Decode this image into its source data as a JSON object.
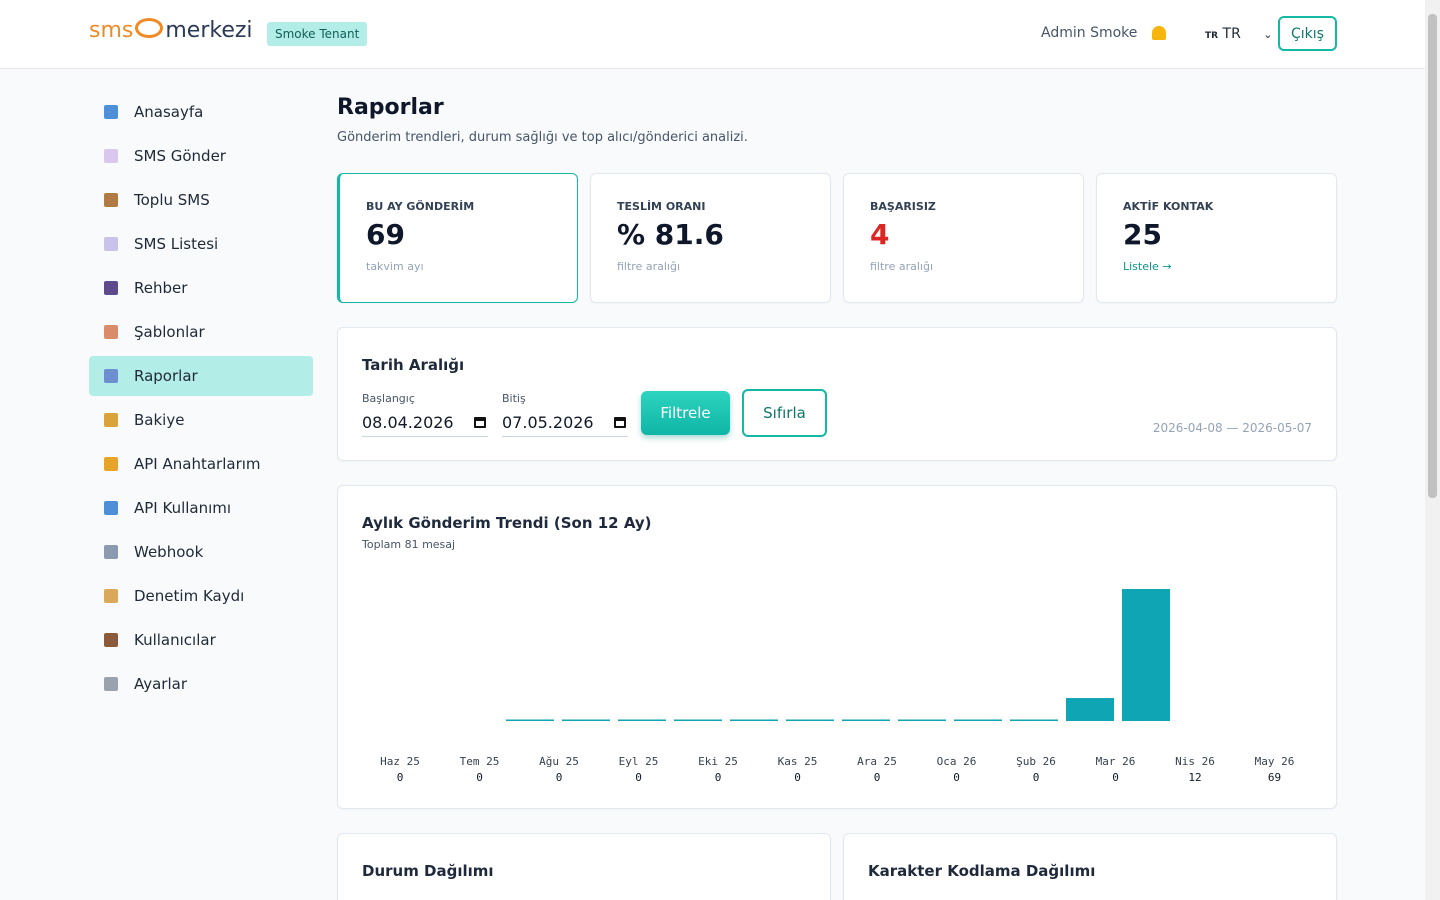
{
  "header": {
    "logo_left": "sms",
    "logo_right": "merkezi",
    "tenant": "Smoke Tenant",
    "user": "Admin Smoke",
    "lang_code": "TR",
    "lang": "TR",
    "logout": "Çıkış"
  },
  "sidebar": {
    "items": [
      {
        "label": "Anasayfa",
        "icon_color": "#4f8fd8",
        "active": false
      },
      {
        "label": "SMS Gönder",
        "icon_color": "#d9c7ee",
        "active": false
      },
      {
        "label": "Toplu SMS",
        "icon_color": "#b07a45",
        "active": false
      },
      {
        "label": "SMS Listesi",
        "icon_color": "#c9c2ea",
        "active": false
      },
      {
        "label": "Rehber",
        "icon_color": "#5b4b8a",
        "active": false
      },
      {
        "label": "Şablonlar",
        "icon_color": "#d98b6a",
        "active": false
      },
      {
        "label": "Raporlar",
        "icon_color": "#6c8fd0",
        "active": true
      },
      {
        "label": "Bakiye",
        "icon_color": "#d9a23a",
        "active": false
      },
      {
        "label": "API Anahtarlarım",
        "icon_color": "#e6a52a",
        "active": false
      },
      {
        "label": "API Kullanımı",
        "icon_color": "#4f8fd8",
        "active": false
      },
      {
        "label": "Webhook",
        "icon_color": "#8a9bb0",
        "active": false
      },
      {
        "label": "Denetim Kaydı",
        "icon_color": "#d9a85a",
        "active": false
      },
      {
        "label": "Kullanıcılar",
        "icon_color": "#8a5a3a",
        "active": false
      },
      {
        "label": "Ayarlar",
        "icon_color": "#9aa3ad",
        "active": false
      }
    ]
  },
  "page": {
    "title": "Raporlar",
    "subtitle": "Gönderim trendleri, durum sağlığı ve top alıcı/gönderici analizi."
  },
  "stats": [
    {
      "label": "BU AY GÖNDERİM",
      "value": "69",
      "note": "takvim ayı",
      "highlight": true
    },
    {
      "label": "TESLİM ORANI",
      "value": "% 81.6",
      "note": "filtre aralığı"
    },
    {
      "label": "BAŞARISIZ",
      "value": "4",
      "note": "filtre aralığı",
      "value_color": "#dc2626"
    },
    {
      "label": "AKTİF KONTAK",
      "value": "25",
      "link": "Listele →"
    }
  ],
  "filter": {
    "title": "Tarih Aralığı",
    "start_label": "Başlangıç",
    "start": "08.04.2026",
    "end_label": "Bitiş",
    "end": "07.05.2026",
    "apply": "Filtrele",
    "reset": "Sıfırla",
    "range": "2026-04-08 — 2026-05-07"
  },
  "chart_data": {
    "type": "bar",
    "title": "Aylık Gönderim Trendi (Son 12 Ay)",
    "subtitle": "Toplam 81 mesaj",
    "categories": [
      "Haz 25",
      "Tem 25",
      "Ağu 25",
      "Eyl 25",
      "Eki 25",
      "Kas 25",
      "Ara 25",
      "Oca 26",
      "Şub 26",
      "Mar 26",
      "Nis 26",
      "May 26"
    ],
    "values": [
      0,
      0,
      0,
      0,
      0,
      0,
      0,
      0,
      0,
      0,
      12,
      69
    ],
    "color": "#0fa5b4"
  },
  "bottom": {
    "left_title": "Durum Dağılımı",
    "right_title": "Karakter Kodlama Dağılımı"
  }
}
